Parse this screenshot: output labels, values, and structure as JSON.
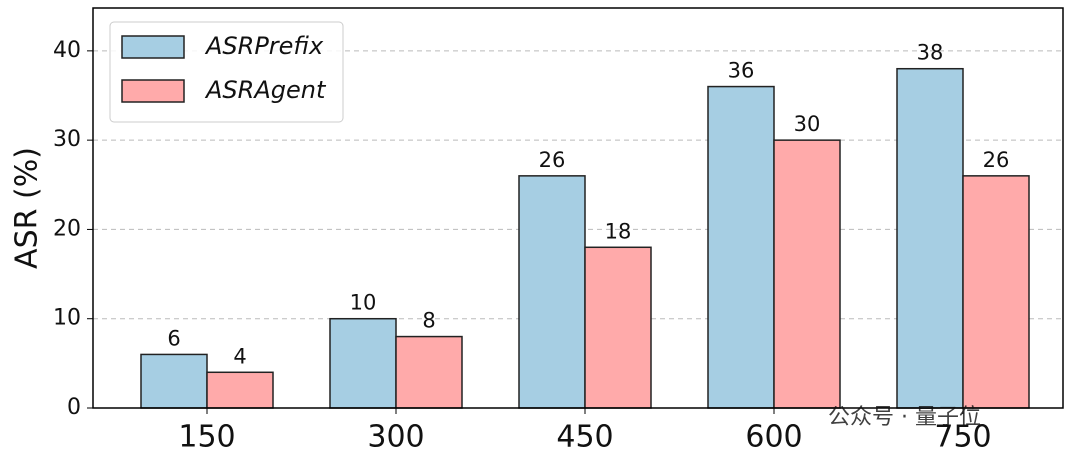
{
  "chart_data": {
    "type": "bar",
    "y_label": "ASR (%)",
    "categories": [
      "150",
      "300",
      "450",
      "600",
      "750"
    ],
    "series": [
      {
        "name": "ASRPrefix",
        "color": "#a6cee3",
        "values": [
          6,
          10,
          26,
          36,
          38
        ]
      },
      {
        "name": "ASRAgent",
        "color": "#ffaaaa",
        "values": [
          4,
          8,
          18,
          30,
          26
        ]
      }
    ],
    "ylim": [
      0,
      44.8
    ],
    "yticks": [
      0,
      10,
      20,
      30,
      40
    ],
    "grid": true,
    "legend": "upper left",
    "watermark": "公众号 · 量子位"
  }
}
